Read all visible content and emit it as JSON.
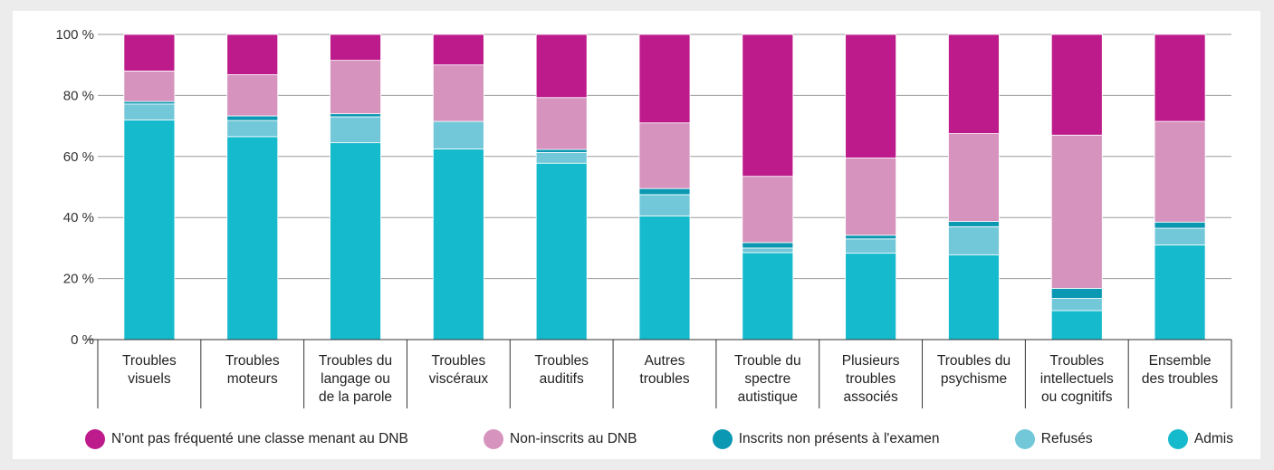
{
  "chart_data": {
    "type": "bar",
    "stacked": true,
    "categories": [
      [
        "Troubles",
        "visuels"
      ],
      [
        "Troubles",
        "moteurs"
      ],
      [
        "Troubles du",
        "langage ou",
        "de la parole"
      ],
      [
        "Troubles",
        "viscéraux"
      ],
      [
        "Troubles",
        "auditifs"
      ],
      [
        "Autres",
        "troubles"
      ],
      [
        "Trouble du",
        "spectre",
        "autistique"
      ],
      [
        "Plusieurs",
        "troubles",
        "associés"
      ],
      [
        "Troubles du",
        "psychisme"
      ],
      [
        "Troubles",
        "intellectuels",
        "ou cognitifs"
      ],
      [
        "Ensemble",
        "des troubles"
      ]
    ],
    "series": [
      {
        "name": "Admis",
        "color": "#16bacd",
        "values": [
          72,
          66.5,
          64.5,
          62.5,
          57.8,
          40.5,
          28.5,
          28.3,
          27.8,
          9.5,
          31
        ]
      },
      {
        "name": "Refusés",
        "color": "#72c8d9",
        "values": [
          5.2,
          5.3,
          8.5,
          9,
          3.5,
          7,
          1.5,
          4.7,
          9.2,
          4,
          5.5
        ]
      },
      {
        "name": "Inscrits non présents à l'examen",
        "color": "#0a98b3",
        "values": [
          0.8,
          1.5,
          1,
          0,
          1,
          2,
          1.8,
          1.2,
          1.7,
          3.3,
          2
        ]
      },
      {
        "name": "Non-inscrits au DNB",
        "color": "#d693be",
        "values": [
          10,
          13.5,
          17.5,
          18.5,
          17,
          21.5,
          21.7,
          25.3,
          28.8,
          50.2,
          33
        ]
      },
      {
        "name": "N'ont pas fréquenté une classe menant au DNB",
        "color": "#bd1b8b",
        "values": [
          12,
          13.2,
          8.5,
          10,
          20.7,
          29,
          46.5,
          40.5,
          32.5,
          33,
          28.5
        ]
      }
    ],
    "legend_order": [
      4,
      3,
      2,
      1,
      0
    ],
    "ylim": [
      0,
      100
    ],
    "yticks": [
      0,
      20,
      40,
      60,
      80,
      100
    ],
    "ytick_suffix": " %",
    "grid": true,
    "legend_position": "bottom",
    "title": "",
    "xlabel": "",
    "ylabel": ""
  }
}
